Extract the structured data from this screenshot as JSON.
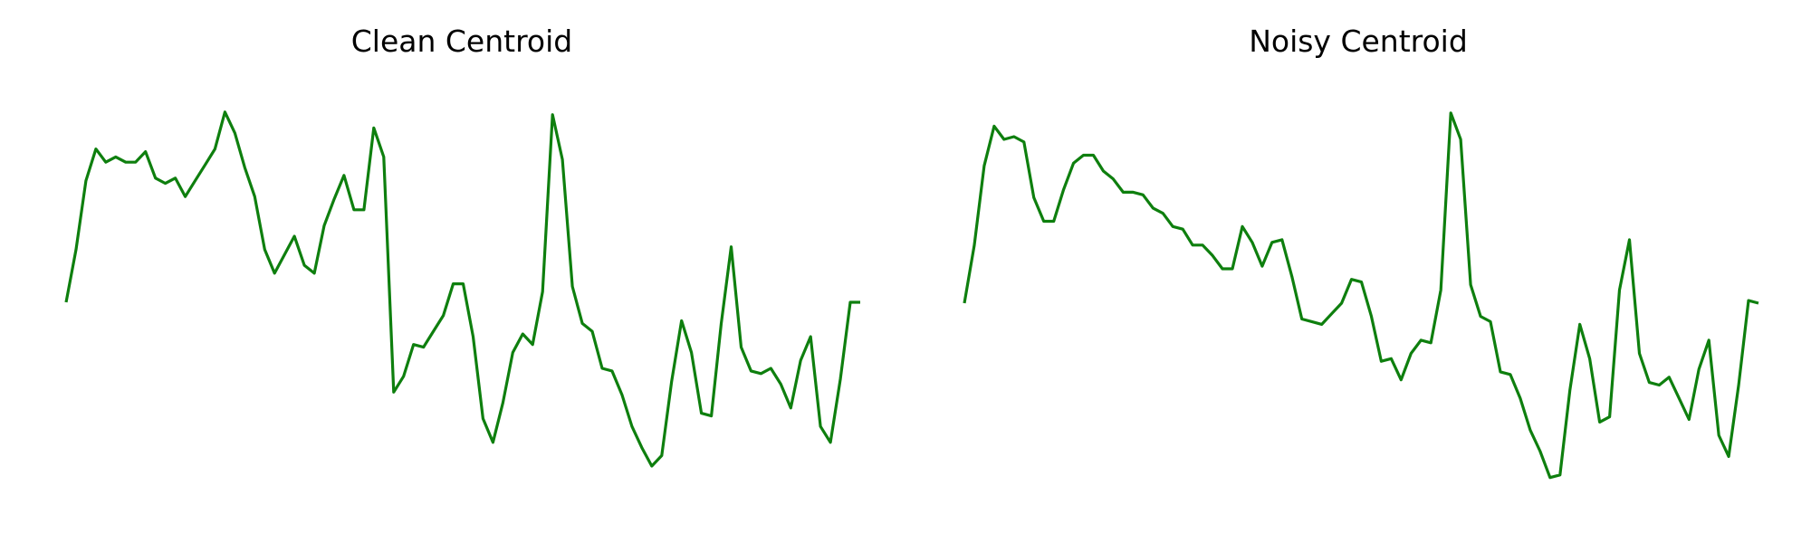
{
  "line_color": "#0e7f0e",
  "chart_data": [
    {
      "type": "line",
      "title": "Clean Centroid",
      "xlabel": "",
      "ylabel": "",
      "axes_visible": false,
      "grid": false,
      "x_range": [
        0,
        80
      ],
      "ylim": [
        -0.7,
        1.05
      ],
      "series": [
        {
          "values": [
            0.0,
            0.2,
            0.46,
            0.58,
            0.53,
            0.55,
            0.53,
            0.53,
            0.57,
            0.47,
            0.45,
            0.47,
            0.4,
            0.46,
            0.52,
            0.58,
            0.72,
            0.64,
            0.51,
            0.4,
            0.2,
            0.11,
            0.18,
            0.25,
            0.14,
            0.11,
            0.29,
            0.39,
            0.48,
            0.35,
            0.35,
            0.66,
            0.55,
            -0.34,
            -0.28,
            -0.16,
            -0.17,
            -0.11,
            -0.05,
            0.07,
            0.07,
            -0.13,
            -0.44,
            -0.53,
            -0.38,
            -0.19,
            -0.12,
            -0.16,
            0.04,
            0.71,
            0.54,
            0.06,
            -0.08,
            -0.11,
            -0.25,
            -0.26,
            -0.35,
            -0.47,
            -0.55,
            -0.62,
            -0.58,
            -0.3,
            -0.07,
            -0.19,
            -0.42,
            -0.43,
            -0.08,
            0.21,
            -0.17,
            -0.26,
            -0.27,
            -0.25,
            -0.31,
            -0.4,
            -0.22,
            -0.13,
            -0.47,
            -0.53,
            -0.29,
            0.0,
            0.0
          ]
        }
      ]
    },
    {
      "type": "line",
      "title": "Noisy Centroid",
      "xlabel": "",
      "ylabel": "",
      "axes_visible": false,
      "grid": false,
      "x_range": [
        0,
        80
      ],
      "ylim": [
        -0.7,
        1.05
      ],
      "series": [
        {
          "values": [
            0.0,
            0.22,
            0.52,
            0.67,
            0.62,
            0.63,
            0.61,
            0.4,
            0.31,
            0.31,
            0.43,
            0.53,
            0.56,
            0.56,
            0.5,
            0.47,
            0.42,
            0.42,
            0.41,
            0.36,
            0.34,
            0.29,
            0.28,
            0.22,
            0.22,
            0.18,
            0.13,
            0.13,
            0.29,
            0.23,
            0.14,
            0.23,
            0.24,
            0.1,
            -0.06,
            -0.07,
            -0.08,
            -0.04,
            0.0,
            0.09,
            0.08,
            -0.05,
            -0.22,
            -0.21,
            -0.29,
            -0.19,
            -0.14,
            -0.15,
            0.05,
            0.72,
            0.62,
            0.07,
            -0.05,
            -0.07,
            -0.26,
            -0.27,
            -0.36,
            -0.48,
            -0.56,
            -0.66,
            -0.65,
            -0.33,
            -0.08,
            -0.21,
            -0.45,
            -0.43,
            0.05,
            0.24,
            -0.19,
            -0.3,
            -0.31,
            -0.28,
            -0.36,
            -0.44,
            -0.25,
            -0.14,
            -0.5,
            -0.58,
            -0.31,
            0.01,
            0.0
          ]
        }
      ]
    }
  ]
}
